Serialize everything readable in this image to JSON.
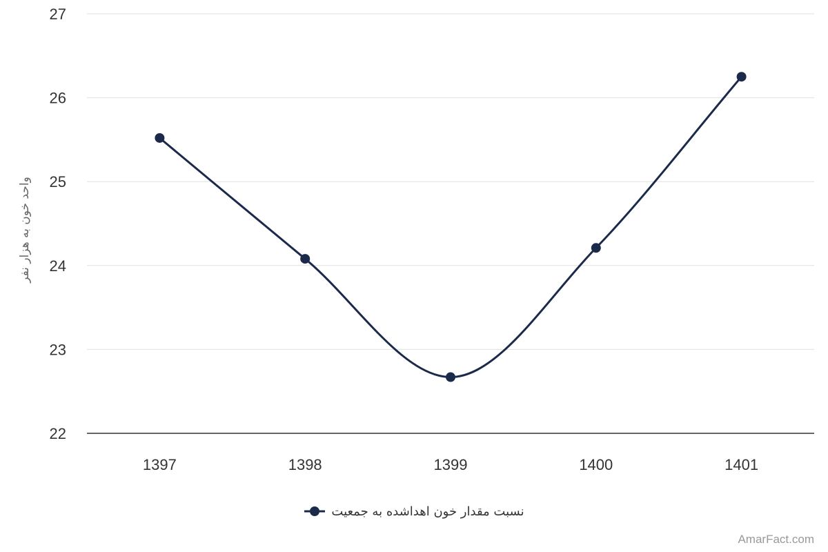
{
  "chart_data": {
    "type": "line",
    "x": [
      "1397",
      "1398",
      "1399",
      "1400",
      "1401"
    ],
    "series": [
      {
        "name": "نسبت مقدار خون اهداشده به جمعیت",
        "values": [
          25.52,
          24.08,
          22.67,
          24.21,
          26.25
        ],
        "color": "#1b2a4a"
      }
    ],
    "title": "",
    "xlabel": "",
    "ylabel": "واحد خون به هزار نفر",
    "ylim": [
      22,
      27
    ],
    "yticks": [
      22,
      23,
      24,
      25,
      26,
      27
    ],
    "grid": true,
    "legend_position": "bottom",
    "smooth": true
  },
  "colors": {
    "grid": "#e0e0e0",
    "axis": "#333333",
    "tick_text": "#333333"
  },
  "watermark": "AmarFact.com"
}
